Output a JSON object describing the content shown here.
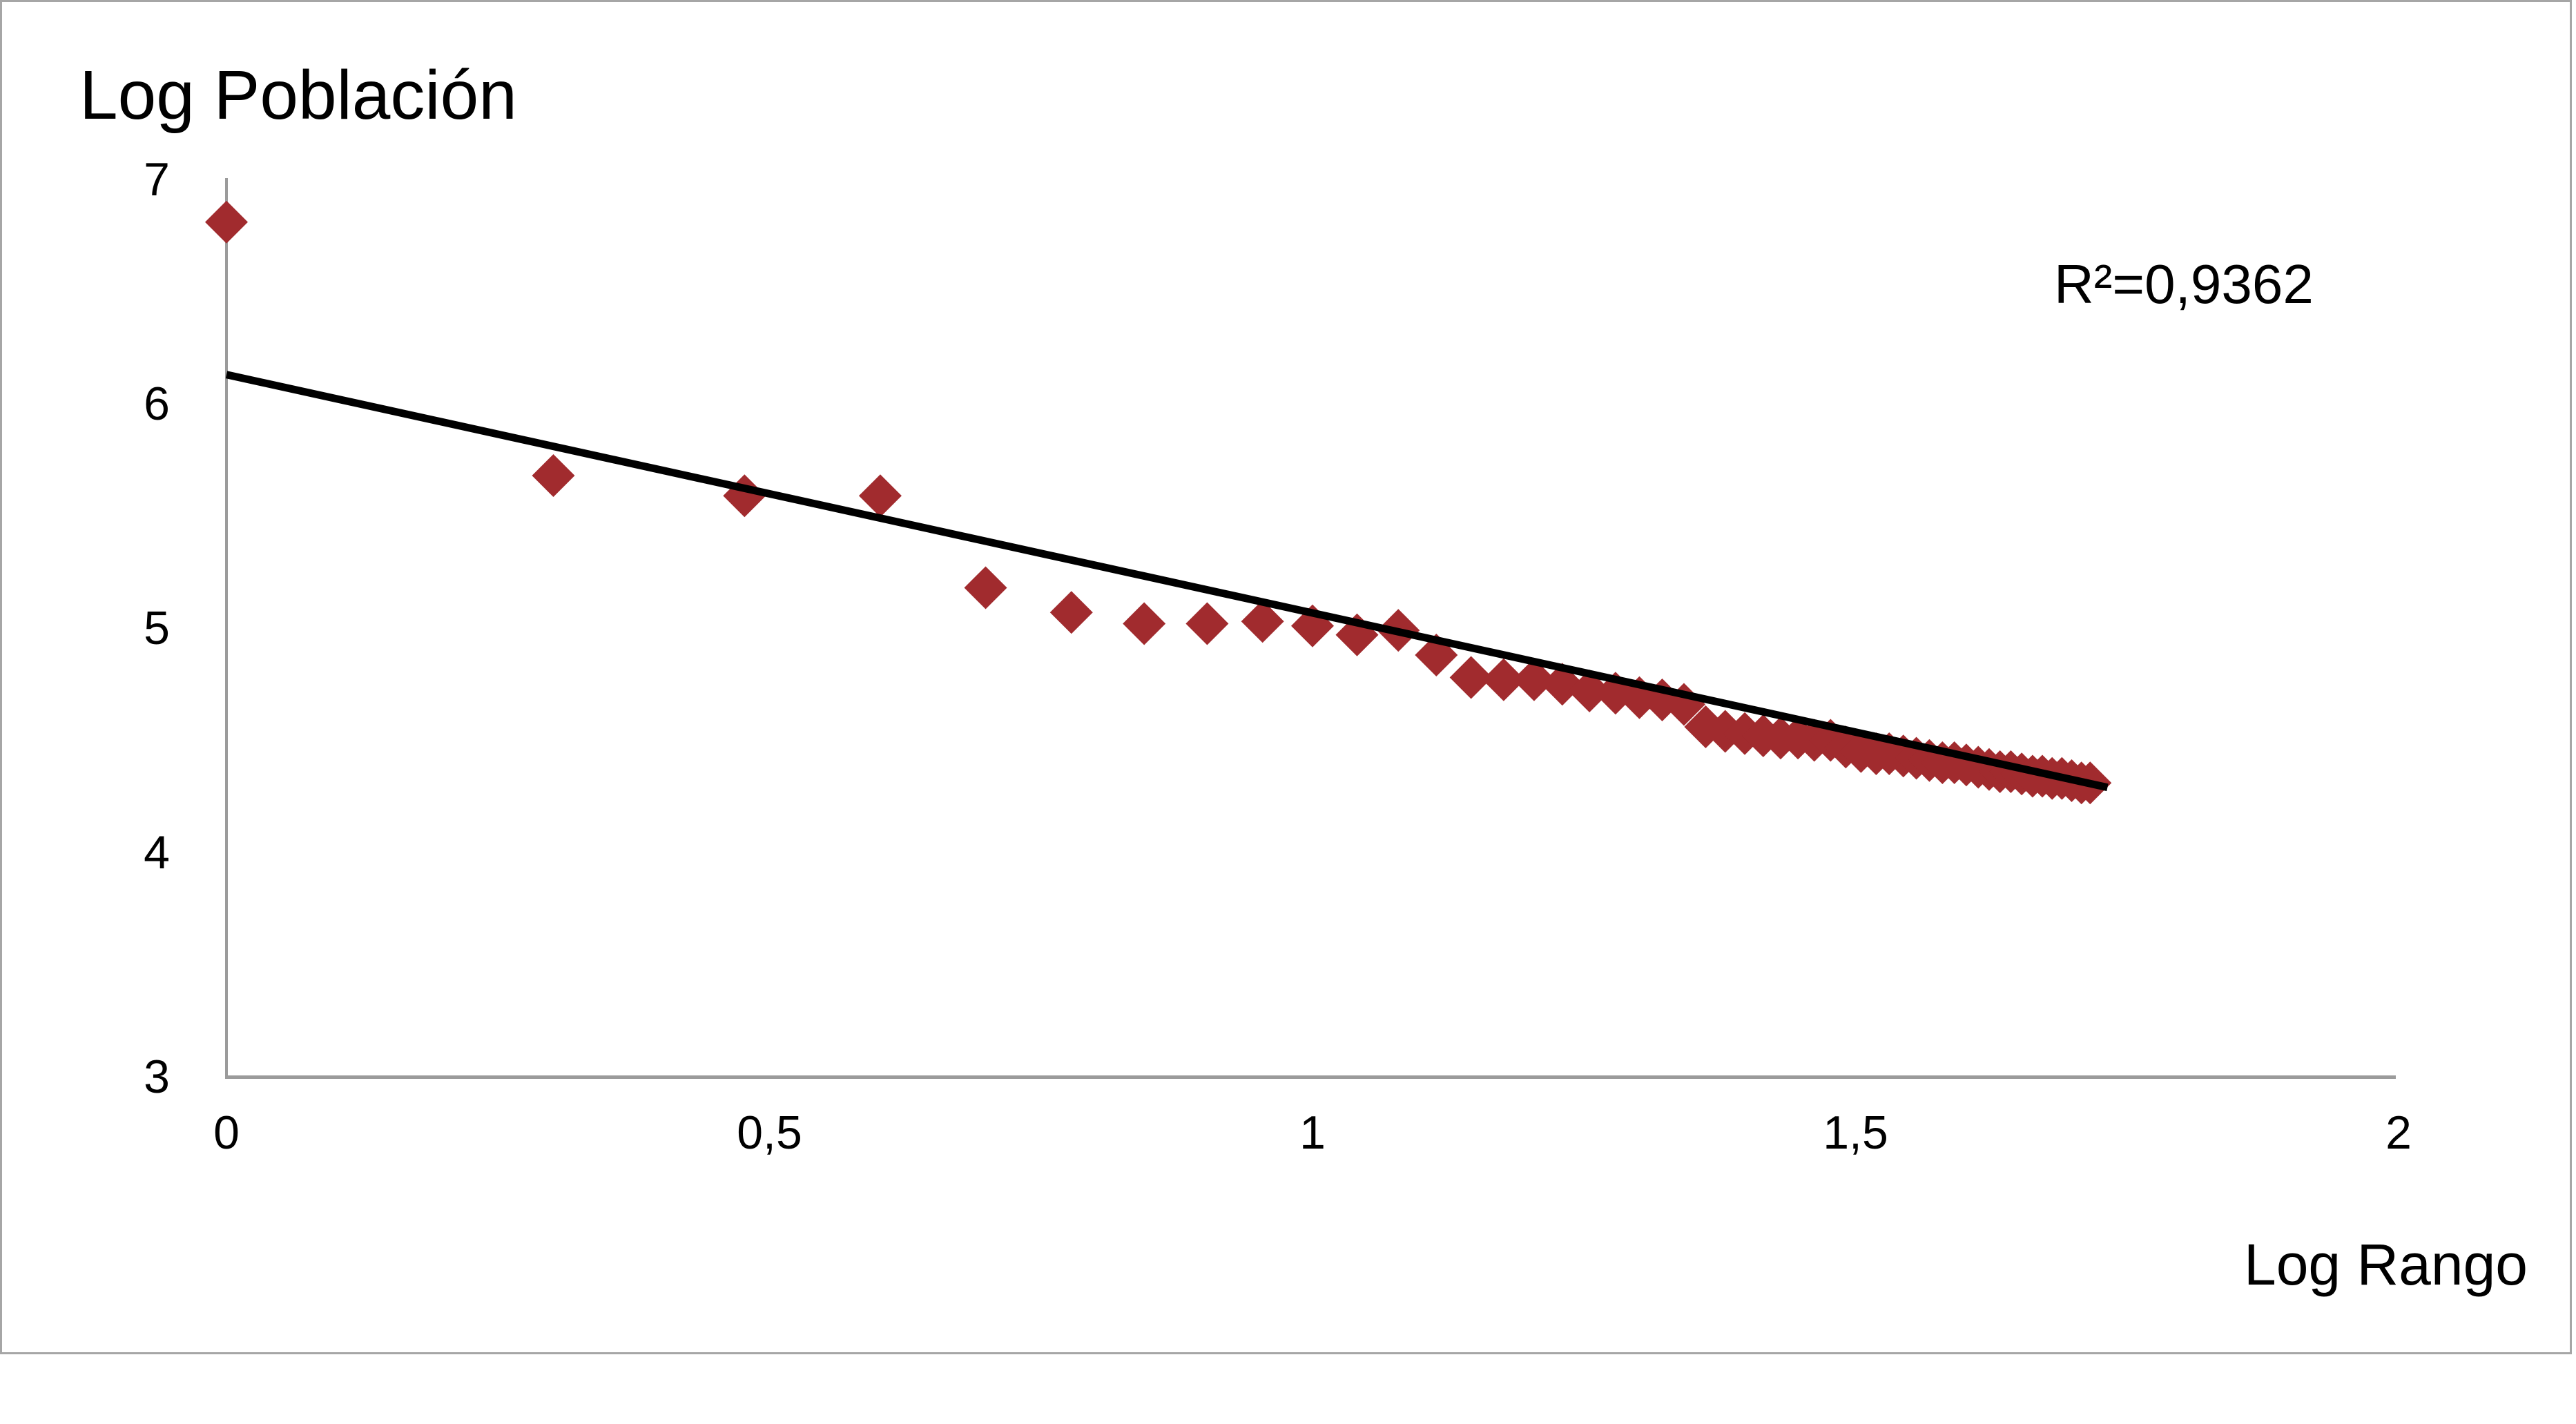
{
  "chart_data": {
    "type": "scatter",
    "title": "Log Población",
    "xlabel": "Log Rango",
    "ylabel": "Log Población",
    "annotation_r2": "R²=0,9362",
    "xlim": [
      0,
      2
    ],
    "ylim": [
      3,
      7
    ],
    "grid": false,
    "legend": "none",
    "marker_shape": "diamond",
    "marker_color": "#a12b2e",
    "trend_color": "#000000",
    "axis_color": "#9b9b9b",
    "x_ticks": [
      {
        "label": "0",
        "value": 0
      },
      {
        "label": "0,5",
        "value": 0.5
      },
      {
        "label": "1",
        "value": 1
      },
      {
        "label": "1,5",
        "value": 1.5
      },
      {
        "label": "2",
        "value": 2
      }
    ],
    "y_ticks": [
      {
        "label": "7",
        "value": 7
      },
      {
        "label": "6",
        "value": 6
      },
      {
        "label": "5",
        "value": 5
      },
      {
        "label": "4",
        "value": 4
      },
      {
        "label": "3",
        "value": 3
      }
    ],
    "trendline": {
      "x1": 0,
      "y1": 6.13,
      "x2": 1.732,
      "y2": 4.29
    },
    "points": [
      {
        "rank": 1,
        "x": 0.0,
        "y": 6.81
      },
      {
        "rank": 2,
        "x": 0.301,
        "y": 5.68
      },
      {
        "rank": 3,
        "x": 0.477,
        "y": 5.59
      },
      {
        "rank": 4,
        "x": 0.602,
        "y": 5.59
      },
      {
        "rank": 5,
        "x": 0.699,
        "y": 5.18
      },
      {
        "rank": 6,
        "x": 0.778,
        "y": 5.07
      },
      {
        "rank": 7,
        "x": 0.845,
        "y": 5.02
      },
      {
        "rank": 8,
        "x": 0.903,
        "y": 5.02
      },
      {
        "rank": 9,
        "x": 0.954,
        "y": 5.03
      },
      {
        "rank": 10,
        "x": 1.0,
        "y": 5.01
      },
      {
        "rank": 11,
        "x": 1.041,
        "y": 4.97
      },
      {
        "rank": 12,
        "x": 1.079,
        "y": 4.99
      },
      {
        "rank": 13,
        "x": 1.114,
        "y": 4.88
      },
      {
        "rank": 14,
        "x": 1.146,
        "y": 4.78
      },
      {
        "rank": 15,
        "x": 1.176,
        "y": 4.77
      },
      {
        "rank": 16,
        "x": 1.204,
        "y": 4.77
      },
      {
        "rank": 17,
        "x": 1.23,
        "y": 4.75
      },
      {
        "rank": 18,
        "x": 1.255,
        "y": 4.72
      },
      {
        "rank": 19,
        "x": 1.279,
        "y": 4.71
      },
      {
        "rank": 20,
        "x": 1.301,
        "y": 4.69
      },
      {
        "rank": 21,
        "x": 1.322,
        "y": 4.68
      },
      {
        "rank": 22,
        "x": 1.342,
        "y": 4.66
      },
      {
        "rank": 23,
        "x": 1.362,
        "y": 4.56
      },
      {
        "rank": 24,
        "x": 1.38,
        "y": 4.54
      },
      {
        "rank": 25,
        "x": 1.398,
        "y": 4.53
      },
      {
        "rank": 26,
        "x": 1.415,
        "y": 4.52
      },
      {
        "rank": 27,
        "x": 1.431,
        "y": 4.51
      },
      {
        "rank": 28,
        "x": 1.447,
        "y": 4.51
      },
      {
        "rank": 29,
        "x": 1.462,
        "y": 4.5
      },
      {
        "rank": 30,
        "x": 1.477,
        "y": 4.5
      },
      {
        "rank": 31,
        "x": 1.491,
        "y": 4.47
      },
      {
        "rank": 32,
        "x": 1.505,
        "y": 4.45
      },
      {
        "rank": 33,
        "x": 1.519,
        "y": 4.44
      },
      {
        "rank": 34,
        "x": 1.531,
        "y": 4.44
      },
      {
        "rank": 35,
        "x": 1.544,
        "y": 4.43
      },
      {
        "rank": 36,
        "x": 1.556,
        "y": 4.42
      },
      {
        "rank": 37,
        "x": 1.568,
        "y": 4.41
      },
      {
        "rank": 38,
        "x": 1.58,
        "y": 4.4
      },
      {
        "rank": 39,
        "x": 1.591,
        "y": 4.4
      },
      {
        "rank": 40,
        "x": 1.602,
        "y": 4.39
      },
      {
        "rank": 41,
        "x": 1.613,
        "y": 4.38
      },
      {
        "rank": 42,
        "x": 1.623,
        "y": 4.37
      },
      {
        "rank": 43,
        "x": 1.633,
        "y": 4.36
      },
      {
        "rank": 44,
        "x": 1.643,
        "y": 4.36
      },
      {
        "rank": 45,
        "x": 1.653,
        "y": 4.35
      },
      {
        "rank": 46,
        "x": 1.663,
        "y": 4.34
      },
      {
        "rank": 47,
        "x": 1.672,
        "y": 4.34
      },
      {
        "rank": 48,
        "x": 1.681,
        "y": 4.33
      },
      {
        "rank": 49,
        "x": 1.69,
        "y": 4.33
      },
      {
        "rank": 50,
        "x": 1.699,
        "y": 4.32
      },
      {
        "rank": 51,
        "x": 1.708,
        "y": 4.31
      },
      {
        "rank": 52,
        "x": 1.716,
        "y": 4.31
      }
    ]
  }
}
